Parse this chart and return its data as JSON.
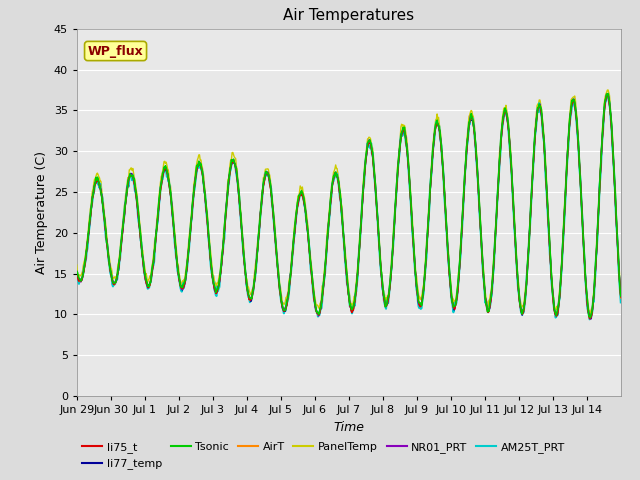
{
  "title": "Air Temperatures",
  "ylabel": "Air Temperature (C)",
  "xlabel": "Time",
  "ylim": [
    0,
    45
  ],
  "yticks": [
    0,
    5,
    10,
    15,
    20,
    25,
    30,
    35,
    40,
    45
  ],
  "annotation_text": "WP_flux",
  "annotation_color": "#8B0000",
  "annotation_bg": "#FFFF99",
  "series_names": [
    "li75_t",
    "li77_temp",
    "Tsonic",
    "AirT",
    "PanelTemp",
    "NR01_PRT",
    "AM25T_PRT"
  ],
  "series_colors": [
    "#DD0000",
    "#000099",
    "#00CC00",
    "#FF8800",
    "#CCCC00",
    "#8800BB",
    "#00CCCC"
  ],
  "series_lw": [
    1.0,
    1.0,
    1.2,
    1.0,
    1.0,
    1.0,
    1.5
  ],
  "series_zorder": [
    5,
    4,
    6,
    4,
    3,
    4,
    3
  ],
  "xtick_labels": [
    "Jun 29",
    "Jun 30",
    "Jul 1",
    "Jul 2",
    "Jul 3",
    "Jul 4",
    "Jul 5",
    "Jul 6",
    "Jul 7",
    "Jul 8",
    "Jul 9",
    "Jul 10",
    "Jul 11",
    "Jul 12",
    "Jul 13",
    "Jul 14"
  ],
  "bg_color": "#E8E8E8",
  "grid_color": "#FFFFFF",
  "fig_bg": "#DCDCDC",
  "legend_fontsize": 8,
  "title_fontsize": 11
}
